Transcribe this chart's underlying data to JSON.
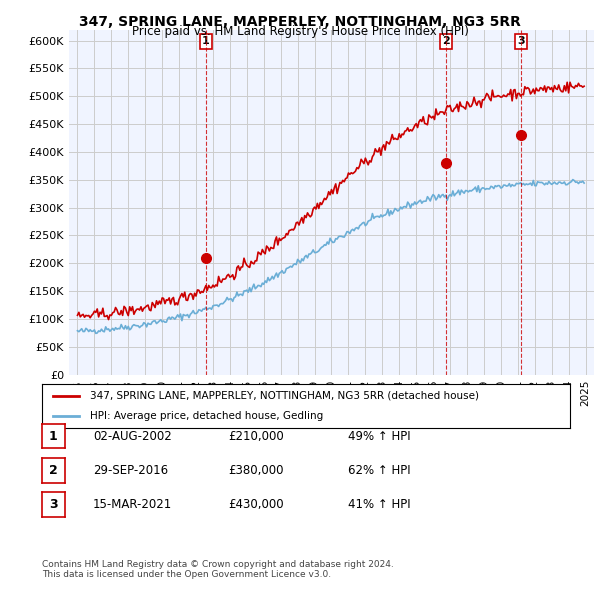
{
  "title1": "347, SPRING LANE, MAPPERLEY, NOTTINGHAM, NG3 5RR",
  "title2": "Price paid vs. HM Land Registry's House Price Index (HPI)",
  "ylabel_ticks": [
    "£0",
    "£50K",
    "£100K",
    "£150K",
    "£200K",
    "£250K",
    "£300K",
    "£350K",
    "£400K",
    "£450K",
    "£500K",
    "£550K",
    "£600K"
  ],
  "ytick_values": [
    0,
    50000,
    100000,
    150000,
    200000,
    250000,
    300000,
    350000,
    400000,
    450000,
    500000,
    550000,
    600000
  ],
  "ylim": [
    0,
    620000
  ],
  "xlim_start": 1994.5,
  "xlim_end": 2025.5,
  "hpi_color": "#6baed6",
  "price_color": "#cc0000",
  "sale_marker_color": "#cc0000",
  "vline_color": "#cc0000",
  "background_color": "#f0f4ff",
  "grid_color": "#cccccc",
  "sales": [
    {
      "date_num": 2002.58,
      "price": 210000,
      "label": "1"
    },
    {
      "date_num": 2016.74,
      "price": 380000,
      "label": "2"
    },
    {
      "date_num": 2021.2,
      "price": 430000,
      "label": "3"
    }
  ],
  "legend_entries": [
    {
      "color": "#cc0000",
      "text": "347, SPRING LANE, MAPPERLEY, NOTTINGHAM, NG3 5RR (detached house)"
    },
    {
      "color": "#6baed6",
      "text": "HPI: Average price, detached house, Gedling"
    }
  ],
  "table_rows": [
    {
      "num": "1",
      "date": "02-AUG-2002",
      "price": "£210,000",
      "change": "49% ↑ HPI"
    },
    {
      "num": "2",
      "date": "29-SEP-2016",
      "price": "£380,000",
      "change": "62% ↑ HPI"
    },
    {
      "num": "3",
      "date": "15-MAR-2021",
      "price": "£430,000",
      "change": "41% ↑ HPI"
    }
  ],
  "footer": "Contains HM Land Registry data © Crown copyright and database right 2024.\nThis data is licensed under the Open Government Licence v3.0.",
  "xticks": [
    1995,
    1996,
    1997,
    1998,
    1999,
    2000,
    2001,
    2002,
    2003,
    2004,
    2005,
    2006,
    2007,
    2008,
    2009,
    2010,
    2011,
    2012,
    2013,
    2014,
    2015,
    2016,
    2017,
    2018,
    2019,
    2020,
    2021,
    2022,
    2023,
    2024,
    2025
  ]
}
